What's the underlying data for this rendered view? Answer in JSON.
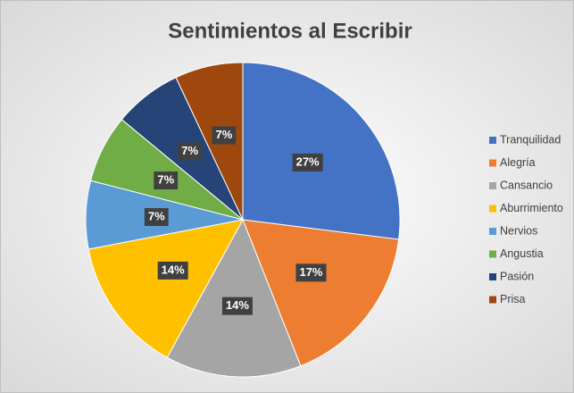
{
  "chart_data": {
    "type": "pie",
    "title": "Sentimientos al Escribir",
    "categories": [
      "Tranquilidad",
      "Alegría",
      "Cansancio",
      "Aburrimiento",
      "Nervios",
      "Angustia",
      "Pasión",
      "Prisa"
    ],
    "values": [
      27,
      17,
      14,
      14,
      7,
      7,
      7,
      7
    ],
    "value_labels": [
      "27%",
      "17%",
      "14%",
      "14%",
      "7%",
      "7%",
      "7%",
      "7%"
    ],
    "colors": [
      "#4472c4",
      "#ed7d31",
      "#a5a5a5",
      "#ffc000",
      "#5b9bd5",
      "#70ad47",
      "#264478",
      "#9e480e"
    ],
    "legend": "right"
  }
}
